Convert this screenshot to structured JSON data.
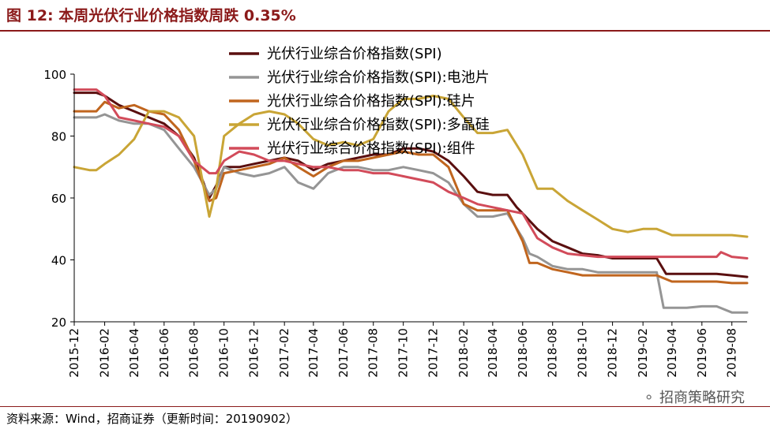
{
  "figure": {
    "title": "图 12:  本周光伏行业价格指数周跌 0.35%",
    "source": "资料来源：Wind，招商证券（更新时间：20190902）",
    "watermark": "招商策略研究"
  },
  "chart_data": {
    "type": "line",
    "title": "",
    "xlabel": "",
    "ylabel": "",
    "ylim": [
      20,
      100
    ],
    "yticks": [
      20,
      40,
      60,
      80,
      100
    ],
    "xlim": [
      "2015-12",
      "2019-09"
    ],
    "xticks": [
      "2015-12",
      "2016-02",
      "2016-04",
      "2016-06",
      "2016-08",
      "2016-10",
      "2016-12",
      "2017-02",
      "2017-04",
      "2017-06",
      "2017-08",
      "2017-10",
      "2017-12",
      "2018-02",
      "2018-04",
      "2018-06",
      "2018-08",
      "2018-10",
      "2018-12",
      "2019-02",
      "2019-04",
      "2019-06",
      "2019-08"
    ],
    "grid": false,
    "legend": "top-center",
    "series": [
      {
        "name": "光伏行业综合价格指数(SPI)",
        "color": "#5a0f0f",
        "x": [
          "2015-12-01",
          "2016-01-15",
          "2016-02-01",
          "2016-03-01",
          "2016-04-01",
          "2016-05-01",
          "2016-06-01",
          "2016-07-01",
          "2016-08-01",
          "2016-09-01",
          "2016-09-15",
          "2016-10-01",
          "2016-11-01",
          "2016-12-01",
          "2017-01-01",
          "2017-02-01",
          "2017-03-01",
          "2017-04-01",
          "2017-05-01",
          "2017-06-01",
          "2017-07-01",
          "2017-08-01",
          "2017-09-01",
          "2017-10-01",
          "2017-11-01",
          "2017-12-01",
          "2018-01-01",
          "2018-02-01",
          "2018-03-01",
          "2018-04-01",
          "2018-05-01",
          "2018-05-20",
          "2018-06-01",
          "2018-07-01",
          "2018-08-01",
          "2018-09-01",
          "2018-10-01",
          "2018-11-01",
          "2018-12-01",
          "2019-01-01",
          "2019-02-01",
          "2019-03-01",
          "2019-03-20",
          "2019-04-01",
          "2019-05-01",
          "2019-06-01",
          "2019-07-01",
          "2019-08-01",
          "2019-09-01"
        ],
        "values": [
          94,
          94,
          93,
          90,
          88,
          86,
          84,
          80,
          73,
          60,
          64,
          70,
          70,
          71,
          72,
          73,
          72,
          69,
          71,
          72,
          73,
          74,
          74,
          76,
          76,
          75,
          72,
          67,
          62,
          61,
          61,
          57,
          55,
          50,
          46,
          44,
          42,
          41.5,
          40.5,
          40.5,
          40.5,
          40.5,
          35.5,
          35.5,
          35.5,
          35.5,
          35.5,
          35,
          34.5
        ]
      },
      {
        "name": "光伏行业综合价格指数(SPI):电池片",
        "color": "#959595",
        "x": [
          "2015-12-01",
          "2016-01-15",
          "2016-02-01",
          "2016-03-01",
          "2016-04-01",
          "2016-05-01",
          "2016-06-01",
          "2016-07-01",
          "2016-08-01",
          "2016-09-01",
          "2016-09-15",
          "2016-10-01",
          "2016-11-01",
          "2016-12-01",
          "2017-01-01",
          "2017-02-01",
          "2017-03-01",
          "2017-04-01",
          "2017-05-01",
          "2017-06-01",
          "2017-07-01",
          "2017-08-01",
          "2017-09-01",
          "2017-10-01",
          "2017-11-01",
          "2017-12-01",
          "2018-01-01",
          "2018-02-01",
          "2018-03-01",
          "2018-04-01",
          "2018-05-01",
          "2018-06-01",
          "2018-06-15",
          "2018-07-01",
          "2018-08-01",
          "2018-09-01",
          "2018-10-01",
          "2018-11-01",
          "2018-12-01",
          "2019-01-01",
          "2019-02-01",
          "2019-03-01",
          "2019-03-15",
          "2019-04-01",
          "2019-05-01",
          "2019-06-01",
          "2019-07-01",
          "2019-08-01",
          "2019-09-01"
        ],
        "values": [
          86,
          86,
          87,
          85,
          84,
          84,
          82,
          76,
          70,
          61,
          63,
          70,
          68,
          67,
          68,
          70,
          65,
          63,
          68,
          70,
          70,
          69,
          69,
          70,
          69,
          68,
          65,
          58,
          54,
          54,
          55,
          47,
          42,
          41,
          38,
          37,
          37,
          36,
          36,
          36,
          36,
          36,
          24.5,
          24.5,
          24.5,
          25,
          25,
          23,
          23
        ]
      },
      {
        "name": "光伏行业综合价格指数(SPI):硅片",
        "color": "#c0651e",
        "x": [
          "2015-12-01",
          "2016-01-15",
          "2016-02-01",
          "2016-03-01",
          "2016-04-01",
          "2016-05-01",
          "2016-06-01",
          "2016-07-01",
          "2016-08-01",
          "2016-09-01",
          "2016-09-15",
          "2016-10-01",
          "2016-11-01",
          "2016-12-01",
          "2017-01-01",
          "2017-02-01",
          "2017-03-01",
          "2017-04-01",
          "2017-05-01",
          "2017-06-01",
          "2017-07-01",
          "2017-08-01",
          "2017-09-01",
          "2017-10-01",
          "2017-11-01",
          "2017-12-01",
          "2018-01-01",
          "2018-02-01",
          "2018-03-01",
          "2018-04-01",
          "2018-05-01",
          "2018-06-01",
          "2018-06-15",
          "2018-07-01",
          "2018-08-01",
          "2018-09-01",
          "2018-10-01",
          "2018-11-01",
          "2018-12-01",
          "2019-01-01",
          "2019-02-01",
          "2019-03-01",
          "2019-04-01",
          "2019-05-01",
          "2019-06-01",
          "2019-07-01",
          "2019-08-01",
          "2019-09-01"
        ],
        "values": [
          88,
          88,
          91,
          89,
          90,
          88,
          87,
          82,
          72,
          59,
          60,
          68,
          69,
          70,
          71,
          73,
          70,
          67,
          70,
          72,
          72,
          73,
          74,
          75,
          74,
          74,
          70,
          58,
          56,
          56,
          56,
          46,
          39,
          39,
          37,
          36,
          35,
          35,
          35,
          35,
          35,
          35,
          33,
          33,
          33,
          33,
          32.5,
          32.5
        ]
      },
      {
        "name": "光伏行业综合价格指数(SPI):多晶硅",
        "color": "#c9a536",
        "x": [
          "2015-12-01",
          "2016-01-01",
          "2016-01-15",
          "2016-02-01",
          "2016-03-01",
          "2016-04-01",
          "2016-05-01",
          "2016-06-01",
          "2016-07-01",
          "2016-08-01",
          "2016-09-01",
          "2016-09-15",
          "2016-10-01",
          "2016-11-01",
          "2016-12-01",
          "2017-01-01",
          "2017-02-01",
          "2017-03-01",
          "2017-04-01",
          "2017-05-01",
          "2017-06-01",
          "2017-07-01",
          "2017-08-01",
          "2017-09-01",
          "2017-10-01",
          "2017-11-01",
          "2017-12-01",
          "2018-01-01",
          "2018-02-01",
          "2018-03-01",
          "2018-04-01",
          "2018-05-01",
          "2018-06-01",
          "2018-07-01",
          "2018-08-01",
          "2018-09-01",
          "2018-10-01",
          "2018-11-01",
          "2018-12-01",
          "2019-01-01",
          "2019-02-01",
          "2019-03-01",
          "2019-04-01",
          "2019-05-01",
          "2019-06-01",
          "2019-07-01",
          "2019-08-01",
          "2019-09-01"
        ],
        "values": [
          70,
          69,
          69,
          71,
          74,
          79,
          88,
          88,
          86,
          80,
          54,
          63,
          80,
          84,
          87,
          88,
          87,
          84,
          79,
          77,
          78,
          77,
          79,
          88,
          92,
          92,
          93,
          92,
          86,
          81,
          81,
          82,
          74,
          63,
          63,
          59,
          56,
          53,
          50,
          49,
          50,
          50,
          48,
          48,
          48,
          48,
          48,
          47.5
        ]
      },
      {
        "name": "光伏行业综合价格指数(SPI):组件",
        "color": "#d24b5a",
        "x": [
          "2015-12-01",
          "2016-01-15",
          "2016-02-01",
          "2016-03-01",
          "2016-04-01",
          "2016-05-01",
          "2016-06-01",
          "2016-07-01",
          "2016-08-01",
          "2016-09-01",
          "2016-09-15",
          "2016-10-01",
          "2016-11-01",
          "2016-12-01",
          "2017-01-01",
          "2017-02-01",
          "2017-03-01",
          "2017-04-01",
          "2017-05-01",
          "2017-06-01",
          "2017-07-01",
          "2017-08-01",
          "2017-09-01",
          "2017-10-01",
          "2017-11-01",
          "2017-12-01",
          "2018-01-01",
          "2018-02-01",
          "2018-03-01",
          "2018-04-01",
          "2018-05-01",
          "2018-06-01",
          "2018-07-01",
          "2018-08-01",
          "2018-09-01",
          "2018-10-01",
          "2018-11-01",
          "2018-12-01",
          "2019-01-01",
          "2019-02-01",
          "2019-03-01",
          "2019-04-01",
          "2019-05-01",
          "2019-06-01",
          "2019-07-01",
          "2019-07-10",
          "2019-08-01",
          "2019-09-01"
        ],
        "values": [
          95,
          95,
          93,
          86,
          85,
          84,
          83,
          80,
          72,
          68,
          68,
          72,
          75,
          74,
          72,
          72,
          71,
          70,
          70,
          69,
          69,
          68,
          68,
          67,
          66,
          65,
          62,
          60,
          58,
          57,
          56,
          55,
          47,
          44,
          42,
          41.5,
          41,
          41,
          41,
          41,
          41,
          41,
          41,
          41,
          41,
          42.5,
          41,
          40.5
        ]
      }
    ]
  }
}
